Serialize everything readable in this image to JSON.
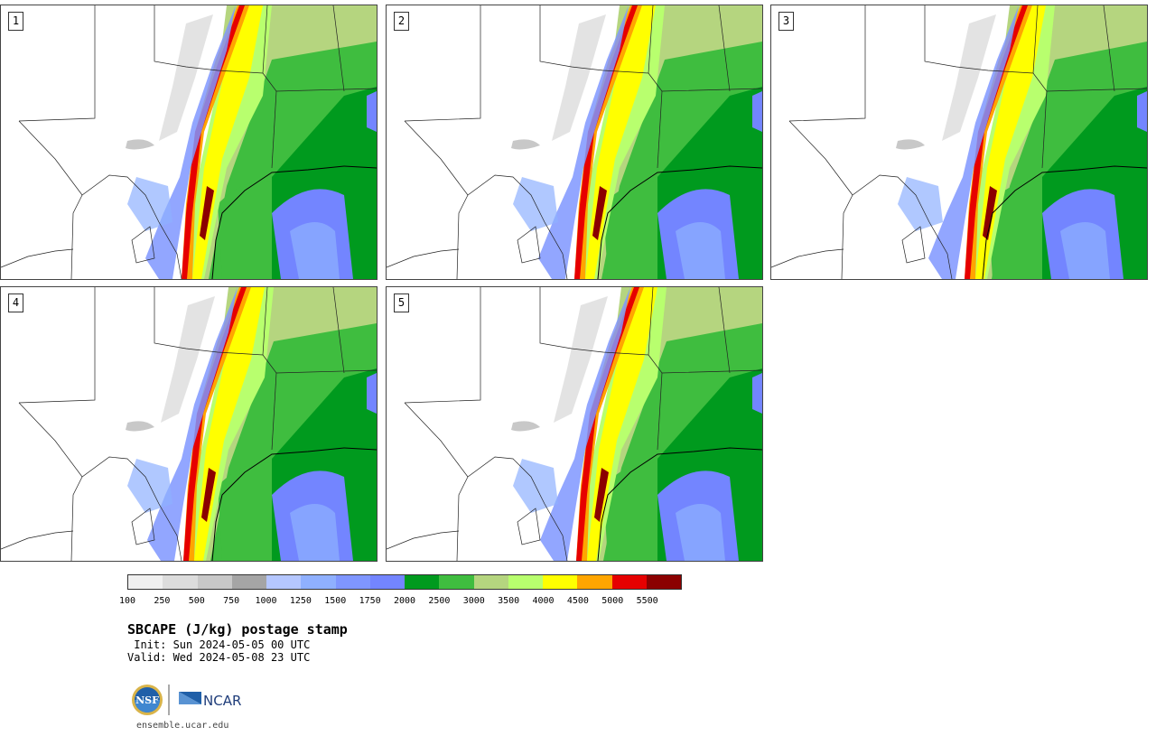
{
  "title": "SBCAPE (J/kg) postage stamp",
  "init": " Init: Sun 2024-05-05 00 UTC",
  "valid": "Valid: Wed 2024-05-08 23 UTC",
  "site": "ensemble.ucar.edu",
  "logos": {
    "nsf": "NSF",
    "ncar": "NCAR"
  },
  "panels": [
    {
      "label": "1"
    },
    {
      "label": "2"
    },
    {
      "label": "3"
    },
    {
      "label": "4"
    },
    {
      "label": "5"
    }
  ],
  "colorbar": {
    "colors": [
      "#f0f0f0",
      "#dcdcdc",
      "#c8c8c8",
      "#a5a5a5",
      "#b5c7ff",
      "#8fb0ff",
      "#7f96ff",
      "#7385ff",
      "#009a1e",
      "#3fbd3f",
      "#b5d57f",
      "#b8ff6e",
      "#ffff00",
      "#ffa500",
      "#e60000",
      "#8b0000"
    ],
    "ticks": [
      "100",
      "250",
      "500",
      "750",
      "1000",
      "1250",
      "1500",
      "1750",
      "2000",
      "2500",
      "3000",
      "3500",
      "4000",
      "4500",
      "5000",
      "5500"
    ]
  }
}
